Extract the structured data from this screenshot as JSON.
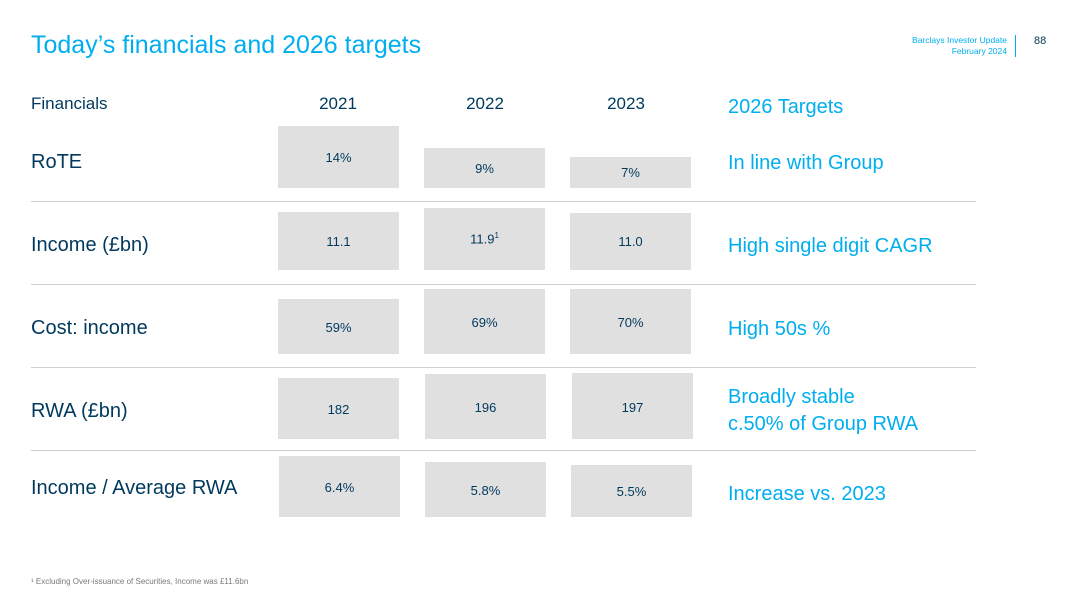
{
  "header": {
    "title": "Today’s financials and 2026 targets",
    "doc_name": "Barclays Investor Update",
    "doc_date": "February 2024",
    "page_number": "88"
  },
  "columns": {
    "financials": "Financials",
    "y2021": "2021",
    "y2022": "2022",
    "y2023": "2023",
    "targets": "2026 Targets"
  },
  "rows": [
    {
      "label": "RoTE",
      "v2021": "14%",
      "v2022": "9%",
      "v2023": "7%",
      "target": "In line with Group"
    },
    {
      "label": "Income (£bn)",
      "v2021": "11.1",
      "v2022": "11.9",
      "v2022_sup": "1",
      "v2023": "11.0",
      "target": "High single digit CAGR"
    },
    {
      "label": "Cost: income",
      "v2021": "59%",
      "v2022": "69%",
      "v2023": "70%",
      "target": "High 50s %"
    },
    {
      "label": "RWA (£bn)",
      "v2021": "182",
      "v2022": "196",
      "v2023": "197",
      "target": "Broadly stable",
      "target_line2": "c.50% of Group RWA"
    },
    {
      "label": "Income / Average RWA",
      "v2021": "6.4%",
      "v2022": "5.8%",
      "v2023": "5.5%",
      "target": "Increase vs. 2023"
    }
  ],
  "footnote": "¹ Excluding Over-issuance of Securities, Income was £11.6bn"
}
